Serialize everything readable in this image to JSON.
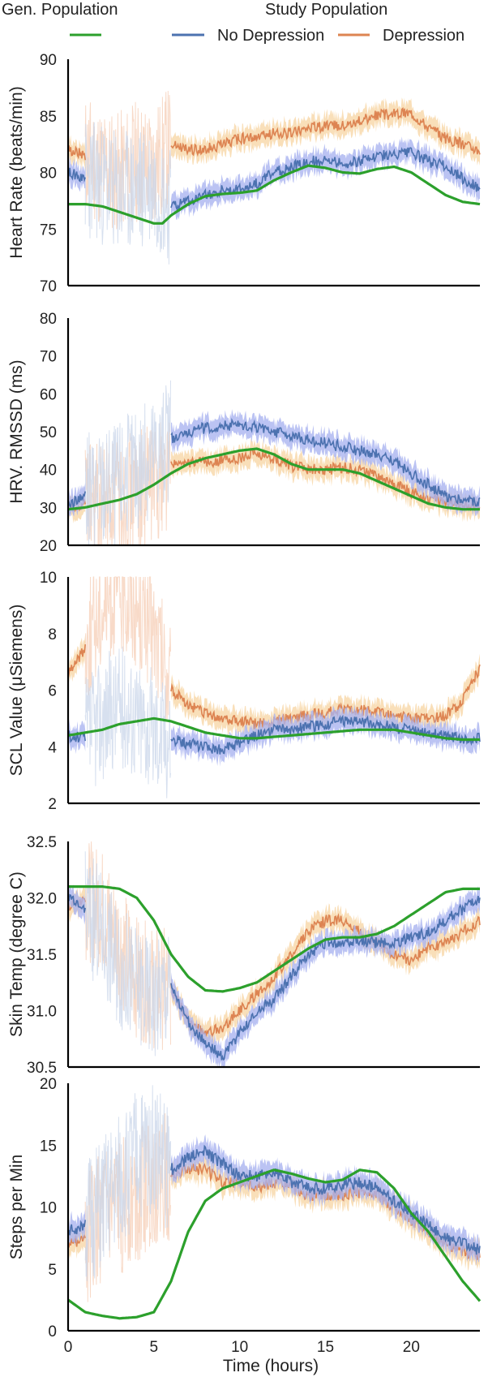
{
  "legend": {
    "gen_title": "Gen. Population",
    "study_title": "Study Population",
    "no_dep_label": "No Depression",
    "dep_label": "Depression"
  },
  "colors": {
    "gen": "#2ca02c",
    "no_dep": "#4c72b0",
    "dep": "#dd8452",
    "no_dep_band": "#aab4f0",
    "dep_band": "#f7d7a8",
    "no_dep_faint": "#c9d6ea",
    "dep_faint": "#f5cdb5"
  },
  "chart_data": [
    {
      "type": "line",
      "ylabel": "Heart Rate (beats/min)",
      "ylim": [
        70,
        90
      ],
      "yticks": [
        70,
        75,
        80,
        85,
        90
      ],
      "xlim": [
        0,
        24
      ],
      "series": [
        {
          "name": "Gen. Population",
          "x": [
            0,
            1,
            2,
            3,
            4,
            5,
            5.5,
            6,
            7,
            8,
            9,
            10,
            11,
            12,
            13,
            14,
            15,
            16,
            17,
            18,
            19,
            20,
            21,
            22,
            23,
            24
          ],
          "y": [
            77.2,
            77.2,
            77.0,
            76.5,
            76.0,
            75.5,
            75.5,
            76.2,
            77.2,
            77.9,
            78.1,
            78.2,
            78.4,
            79.3,
            80.0,
            80.6,
            80.4,
            80.0,
            79.9,
            80.3,
            80.5,
            80.0,
            79.0,
            78.0,
            77.4,
            77.2
          ]
        },
        {
          "name": "No Depression",
          "x": [
            0,
            1,
            2,
            3,
            4,
            5,
            6,
            7,
            8,
            9,
            10,
            11,
            12,
            13,
            14,
            15,
            16,
            17,
            18,
            19,
            20,
            21,
            22,
            23,
            24
          ],
          "y": [
            80.0,
            79.5,
            79.0,
            78.0,
            78.5,
            79.0,
            77.0,
            77.5,
            78.0,
            78.5,
            78.5,
            79.0,
            80.0,
            80.5,
            81.0,
            81.0,
            80.8,
            81.0,
            81.5,
            81.5,
            81.8,
            81.0,
            80.5,
            79.5,
            78.5
          ]
        },
        {
          "name": "Depression",
          "x": [
            0,
            1,
            2,
            3,
            4,
            5,
            6,
            7,
            8,
            9,
            10,
            11,
            12,
            13,
            14,
            15,
            16,
            17,
            18,
            19,
            20,
            21,
            22,
            23,
            24
          ],
          "y": [
            82.0,
            81.5,
            80.5,
            80.0,
            81.0,
            80.5,
            82.5,
            82.0,
            82.0,
            82.5,
            83.0,
            83.0,
            83.5,
            83.5,
            84.0,
            84.0,
            84.2,
            84.5,
            85.0,
            85.2,
            85.3,
            84.0,
            83.0,
            82.5,
            82.0
          ]
        }
      ]
    },
    {
      "type": "line",
      "ylabel": "HRV. RMSSD (ms)",
      "ylim": [
        20,
        80
      ],
      "yticks": [
        20,
        30,
        40,
        50,
        60,
        70,
        80
      ],
      "xlim": [
        0,
        24
      ],
      "series": [
        {
          "name": "Gen. Population",
          "x": [
            0,
            1,
            2,
            3,
            4,
            5,
            6,
            7,
            8,
            9,
            10,
            11,
            12,
            13,
            14,
            15,
            16,
            17,
            18,
            19,
            20,
            21,
            22,
            23,
            24
          ],
          "y": [
            29.5,
            30.0,
            31.0,
            32.0,
            33.5,
            36.0,
            39.0,
            41.5,
            43.0,
            44.0,
            45.0,
            45.5,
            44.0,
            41.5,
            40.0,
            40.0,
            40.0,
            39.0,
            37.0,
            35.0,
            33.0,
            31.0,
            30.0,
            29.5,
            29.5
          ]
        },
        {
          "name": "No Depression",
          "x": [
            0,
            1,
            2,
            3,
            4,
            5,
            6,
            7,
            8,
            9,
            10,
            11,
            12,
            13,
            14,
            15,
            16,
            17,
            18,
            19,
            20,
            21,
            22,
            23,
            24
          ],
          "y": [
            31.0,
            33.0,
            35.0,
            37.0,
            40.0,
            44.0,
            48.0,
            50.0,
            51.0,
            51.5,
            52.0,
            51.0,
            50.0,
            49.0,
            48.0,
            47.0,
            46.0,
            45.0,
            44.0,
            42.0,
            39.0,
            36.0,
            33.0,
            32.0,
            31.5
          ]
        },
        {
          "name": "Depression",
          "x": [
            0,
            1,
            2,
            3,
            4,
            5,
            6,
            7,
            8,
            9,
            10,
            11,
            12,
            13,
            14,
            15,
            16,
            17,
            18,
            19,
            20,
            21,
            22,
            23,
            24
          ],
          "y": [
            30.0,
            31.0,
            31.5,
            32.0,
            34.0,
            37.0,
            41.0,
            42.0,
            42.0,
            42.5,
            43.0,
            44.0,
            43.0,
            41.0,
            40.0,
            40.0,
            40.5,
            40.0,
            38.0,
            36.0,
            34.0,
            32.5,
            31.0,
            30.5,
            30.0
          ]
        }
      ]
    },
    {
      "type": "line",
      "ylabel": "SCL Value (μSiemens)",
      "ylim": [
        2,
        10
      ],
      "yticks": [
        2,
        4,
        6,
        8,
        10
      ],
      "xlim": [
        0,
        24
      ],
      "series": [
        {
          "name": "Gen. Population",
          "x": [
            0,
            1,
            2,
            3,
            4,
            5,
            6,
            7,
            8,
            9,
            10,
            11,
            12,
            13,
            14,
            15,
            16,
            17,
            18,
            19,
            20,
            21,
            22,
            23,
            24
          ],
          "y": [
            4.4,
            4.5,
            4.6,
            4.8,
            4.9,
            5.0,
            4.9,
            4.7,
            4.5,
            4.4,
            4.3,
            4.3,
            4.35,
            4.4,
            4.45,
            4.5,
            4.55,
            4.6,
            4.6,
            4.6,
            4.5,
            4.4,
            4.3,
            4.25,
            4.25
          ]
        },
        {
          "name": "No Depression",
          "x": [
            0,
            1,
            2,
            3,
            4,
            5,
            6,
            7,
            8,
            9,
            10,
            11,
            12,
            13,
            14,
            15,
            16,
            17,
            18,
            19,
            20,
            21,
            22,
            23,
            24
          ],
          "y": [
            4.4,
            4.3,
            5.0,
            5.5,
            5.0,
            4.6,
            4.3,
            4.1,
            4.0,
            3.9,
            4.1,
            4.4,
            4.6,
            4.6,
            4.7,
            4.8,
            4.9,
            4.9,
            4.8,
            4.7,
            4.6,
            4.5,
            4.4,
            4.3,
            4.3
          ]
        },
        {
          "name": "Depression",
          "x": [
            0,
            1,
            2,
            3,
            4,
            5,
            6,
            7,
            8,
            9,
            10,
            11,
            12,
            13,
            14,
            15,
            16,
            17,
            18,
            19,
            20,
            21,
            22,
            23,
            24
          ],
          "y": [
            6.5,
            7.5,
            9.0,
            9.5,
            9.0,
            8.0,
            6.0,
            5.5,
            5.2,
            5.0,
            4.9,
            4.8,
            4.9,
            5.0,
            5.1,
            5.2,
            5.3,
            5.3,
            5.2,
            5.1,
            5.0,
            5.0,
            5.1,
            5.6,
            6.8
          ]
        }
      ]
    },
    {
      "type": "line",
      "ylabel": "Skin Temp (degree C)",
      "ylim": [
        30.5,
        32.5
      ],
      "yticks": [
        30.5,
        31.0,
        31.5,
        32.0,
        32.5
      ],
      "xlim": [
        0,
        24
      ],
      "series": [
        {
          "name": "Gen. Population",
          "x": [
            0,
            1,
            2,
            3,
            4,
            5,
            6,
            7,
            8,
            9,
            10,
            11,
            12,
            13,
            14,
            15,
            16,
            17,
            18,
            19,
            20,
            21,
            22,
            23,
            24
          ],
          "y": [
            32.1,
            32.1,
            32.1,
            32.08,
            32.0,
            31.8,
            31.5,
            31.3,
            31.18,
            31.17,
            31.2,
            31.25,
            31.35,
            31.45,
            31.55,
            31.63,
            31.65,
            31.65,
            31.68,
            31.75,
            31.85,
            31.95,
            32.05,
            32.08,
            32.08
          ]
        },
        {
          "name": "No Depression",
          "x": [
            0,
            1,
            2,
            3,
            4,
            5,
            6,
            7,
            8,
            9,
            10,
            11,
            12,
            13,
            14,
            15,
            16,
            17,
            18,
            19,
            20,
            21,
            22,
            23,
            24
          ],
          "y": [
            32.0,
            31.9,
            31.7,
            31.4,
            31.2,
            31.1,
            31.2,
            30.9,
            30.7,
            30.6,
            30.8,
            31.0,
            31.1,
            31.3,
            31.5,
            31.6,
            31.6,
            31.62,
            31.6,
            31.6,
            31.65,
            31.7,
            31.8,
            31.9,
            32.0
          ]
        },
        {
          "name": "Depression",
          "x": [
            0,
            1,
            2,
            3,
            4,
            5,
            6,
            7,
            8,
            9,
            10,
            11,
            12,
            13,
            14,
            15,
            16,
            17,
            18,
            19,
            20,
            21,
            22,
            23,
            24
          ],
          "y": [
            31.9,
            32.0,
            31.9,
            31.6,
            31.3,
            31.2,
            31.2,
            30.9,
            30.8,
            30.85,
            31.0,
            31.15,
            31.3,
            31.5,
            31.7,
            31.8,
            31.8,
            31.7,
            31.6,
            31.5,
            31.45,
            31.55,
            31.6,
            31.7,
            31.8
          ]
        }
      ]
    },
    {
      "type": "line",
      "ylabel": "Steps per Min",
      "xlabel": "Time (hours)",
      "ylim": [
        0,
        20
      ],
      "yticks": [
        0,
        5,
        10,
        15,
        20
      ],
      "xlim": [
        0,
        24
      ],
      "xticks": [
        0,
        5,
        10,
        15,
        20
      ],
      "series": [
        {
          "name": "Gen. Population",
          "x": [
            0,
            1,
            2,
            3,
            4,
            5,
            6,
            7,
            8,
            9,
            10,
            11,
            12,
            13,
            14,
            15,
            16,
            17,
            18,
            19,
            20,
            21,
            22,
            23,
            24
          ],
          "y": [
            2.5,
            1.5,
            1.2,
            1.0,
            1.1,
            1.5,
            4.0,
            8.0,
            10.5,
            11.5,
            12.0,
            12.5,
            13.0,
            12.7,
            12.3,
            12.0,
            12.2,
            13.0,
            12.8,
            11.5,
            9.5,
            8.0,
            6.0,
            4.0,
            2.4
          ]
        },
        {
          "name": "No Depression",
          "x": [
            0,
            1,
            2,
            3,
            4,
            5,
            6,
            7,
            8,
            9,
            10,
            11,
            12,
            13,
            14,
            15,
            16,
            17,
            18,
            19,
            20,
            21,
            22,
            23,
            24
          ],
          "y": [
            8.0,
            8.5,
            10.0,
            12.0,
            14.0,
            15.0,
            13.0,
            14.0,
            14.5,
            13.5,
            12.5,
            12.5,
            12.8,
            12.0,
            11.5,
            11.5,
            11.8,
            12.0,
            11.5,
            10.5,
            9.5,
            8.5,
            7.5,
            7.0,
            6.5
          ]
        },
        {
          "name": "Depression",
          "x": [
            0,
            1,
            2,
            3,
            4,
            5,
            6,
            7,
            8,
            9,
            10,
            11,
            12,
            13,
            14,
            15,
            16,
            17,
            18,
            19,
            20,
            21,
            22,
            23,
            24
          ],
          "y": [
            7.0,
            7.5,
            9.0,
            10.0,
            11.0,
            12.0,
            12.5,
            13.0,
            13.0,
            12.0,
            12.0,
            11.5,
            12.0,
            11.5,
            11.0,
            11.0,
            11.0,
            11.2,
            11.0,
            10.0,
            9.0,
            8.0,
            7.0,
            6.5,
            6.0
          ]
        }
      ]
    }
  ]
}
